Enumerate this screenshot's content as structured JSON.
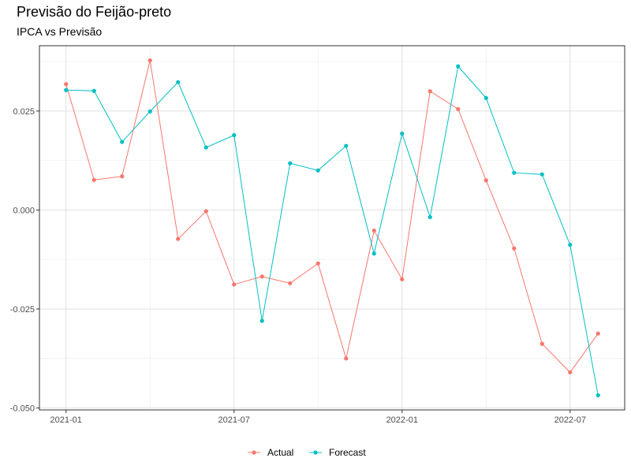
{
  "chart_data": {
    "type": "line",
    "title": "Previsão do Feijão-preto",
    "subtitle": "IPCA vs Previsão",
    "xlabel": "",
    "ylabel": "",
    "x": [
      "2021-01",
      "2021-02",
      "2021-03",
      "2021-04",
      "2021-05",
      "2021-06",
      "2021-07",
      "2021-08",
      "2021-09",
      "2021-10",
      "2021-11",
      "2021-12",
      "2022-01",
      "2022-02",
      "2022-03",
      "2022-04",
      "2022-05",
      "2022-06",
      "2022-07",
      "2022-08"
    ],
    "x_ticks": [
      "2021-01",
      "2021-07",
      "2022-01",
      "2022-07"
    ],
    "y_ticks": [
      0.025,
      0.0,
      -0.025,
      -0.05
    ],
    "y_tick_labels": [
      "0.025",
      "0.000",
      "-0.025",
      "-0.050"
    ],
    "ylim": [
      -0.0505,
      0.0415
    ],
    "grid": true,
    "legend_position": "bottom",
    "series": [
      {
        "name": "Actual",
        "color": "#F8766D",
        "values": [
          0.0318,
          0.0076,
          0.0085,
          0.0378,
          -0.0073,
          -0.0003,
          -0.0188,
          -0.0168,
          -0.0185,
          -0.0135,
          -0.0375,
          -0.0052,
          -0.0175,
          0.03,
          0.0255,
          0.0075,
          -0.0097,
          -0.0338,
          -0.041,
          -0.0312
        ]
      },
      {
        "name": "Forecast",
        "color": "#00BFC4",
        "values": [
          0.0303,
          0.0301,
          0.0172,
          0.0249,
          0.0323,
          0.0158,
          0.0189,
          -0.028,
          0.0118,
          0.01,
          0.0162,
          -0.011,
          0.0193,
          -0.0018,
          0.0363,
          0.0283,
          0.0094,
          0.009,
          -0.0088,
          -0.0468
        ]
      }
    ]
  }
}
